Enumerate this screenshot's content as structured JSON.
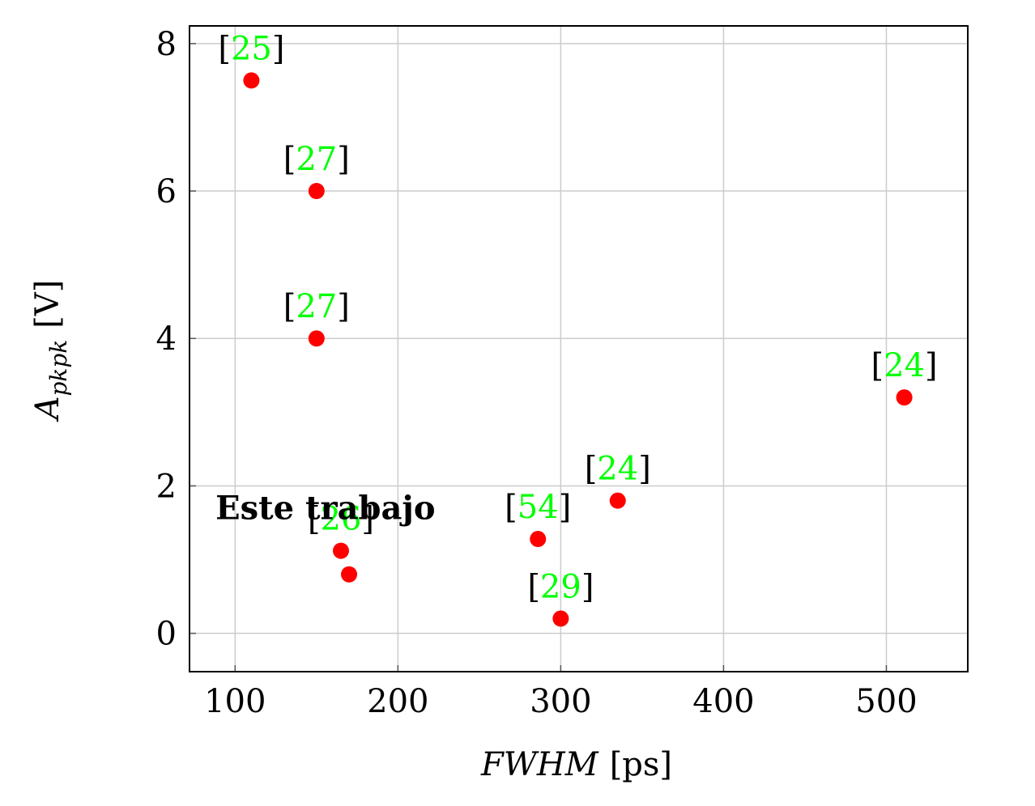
{
  "chart_data": {
    "type": "scatter",
    "title": "",
    "xlabel": {
      "symbol": "FWHM",
      "unit": "[ps]"
    },
    "ylabel": {
      "symbol": "A",
      "subscript": "pkpk",
      "unit": "[V]"
    },
    "xlim": [
      72,
      550
    ],
    "ylim": [
      -0.52,
      8.24
    ],
    "xticks": [
      100,
      200,
      300,
      400,
      500
    ],
    "yticks": [
      0,
      2,
      4,
      6,
      8
    ],
    "grid": true,
    "marker_color": "#ff0000",
    "label_color": "#00ff00",
    "points": [
      {
        "x": 110,
        "y": 7.5,
        "ref": "25"
      },
      {
        "x": 150,
        "y": 6.0,
        "ref": "27"
      },
      {
        "x": 150,
        "y": 4.0,
        "ref": "27"
      },
      {
        "x": 511,
        "y": 3.2,
        "ref": "24"
      },
      {
        "x": 335,
        "y": 1.8,
        "ref": "24"
      },
      {
        "x": 286,
        "y": 1.28,
        "ref": "54"
      },
      {
        "x": 165,
        "y": 1.12,
        "ref": "26"
      },
      {
        "x": 170,
        "y": 0.8,
        "ref": ""
      },
      {
        "x": 300,
        "y": 0.2,
        "ref": "29"
      }
    ],
    "annotations": [
      {
        "text": "Este trabajo",
        "x": 88,
        "y": 1.55
      }
    ]
  }
}
